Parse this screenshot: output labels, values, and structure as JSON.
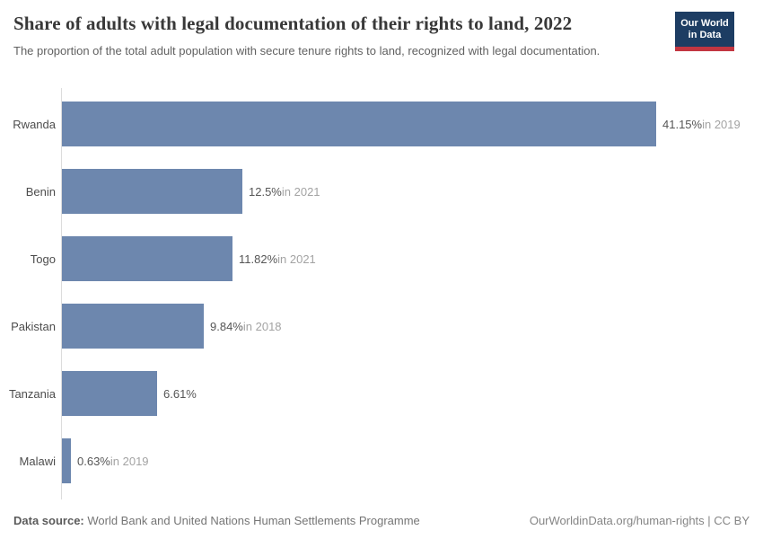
{
  "header": {
    "title": "Share of adults with legal documentation of their rights to land, 2022",
    "subtitle": "The proportion of the total adult population with secure tenure rights to land, recognized with legal documentation.",
    "logo": {
      "line1": "Our World",
      "line2": "in Data"
    }
  },
  "chart_data": {
    "type": "bar",
    "orientation": "horizontal",
    "title": "Share of adults with legal documentation of their rights to land, 2022",
    "xlabel": "",
    "ylabel": "",
    "xlim": [
      0,
      41.15
    ],
    "grid": false,
    "legend": "none",
    "bar_color": "#6d87ae",
    "categories": [
      "Rwanda",
      "Benin",
      "Togo",
      "Pakistan",
      "Tanzania",
      "Malawi"
    ],
    "values": [
      41.15,
      12.5,
      11.82,
      9.84,
      6.61,
      0.63
    ],
    "value_labels": [
      "41.15%",
      "12.5%",
      "11.82%",
      "9.84%",
      "6.61%",
      "0.63%"
    ],
    "year_notes": [
      "in 2019",
      "in 2021",
      "in 2021",
      "in 2018",
      "",
      "in 2019"
    ]
  },
  "colors": {
    "bar": "#6d87ae",
    "axis_line": "#dcdcdc",
    "logo_bg": "#1d3d63",
    "logo_accent": "#c23641"
  },
  "footer": {
    "source_label": "Data source:",
    "source_text": " World Bank and United Nations Human Settlements Programme",
    "credit": "OurWorldinData.org/human-rights | CC BY"
  }
}
